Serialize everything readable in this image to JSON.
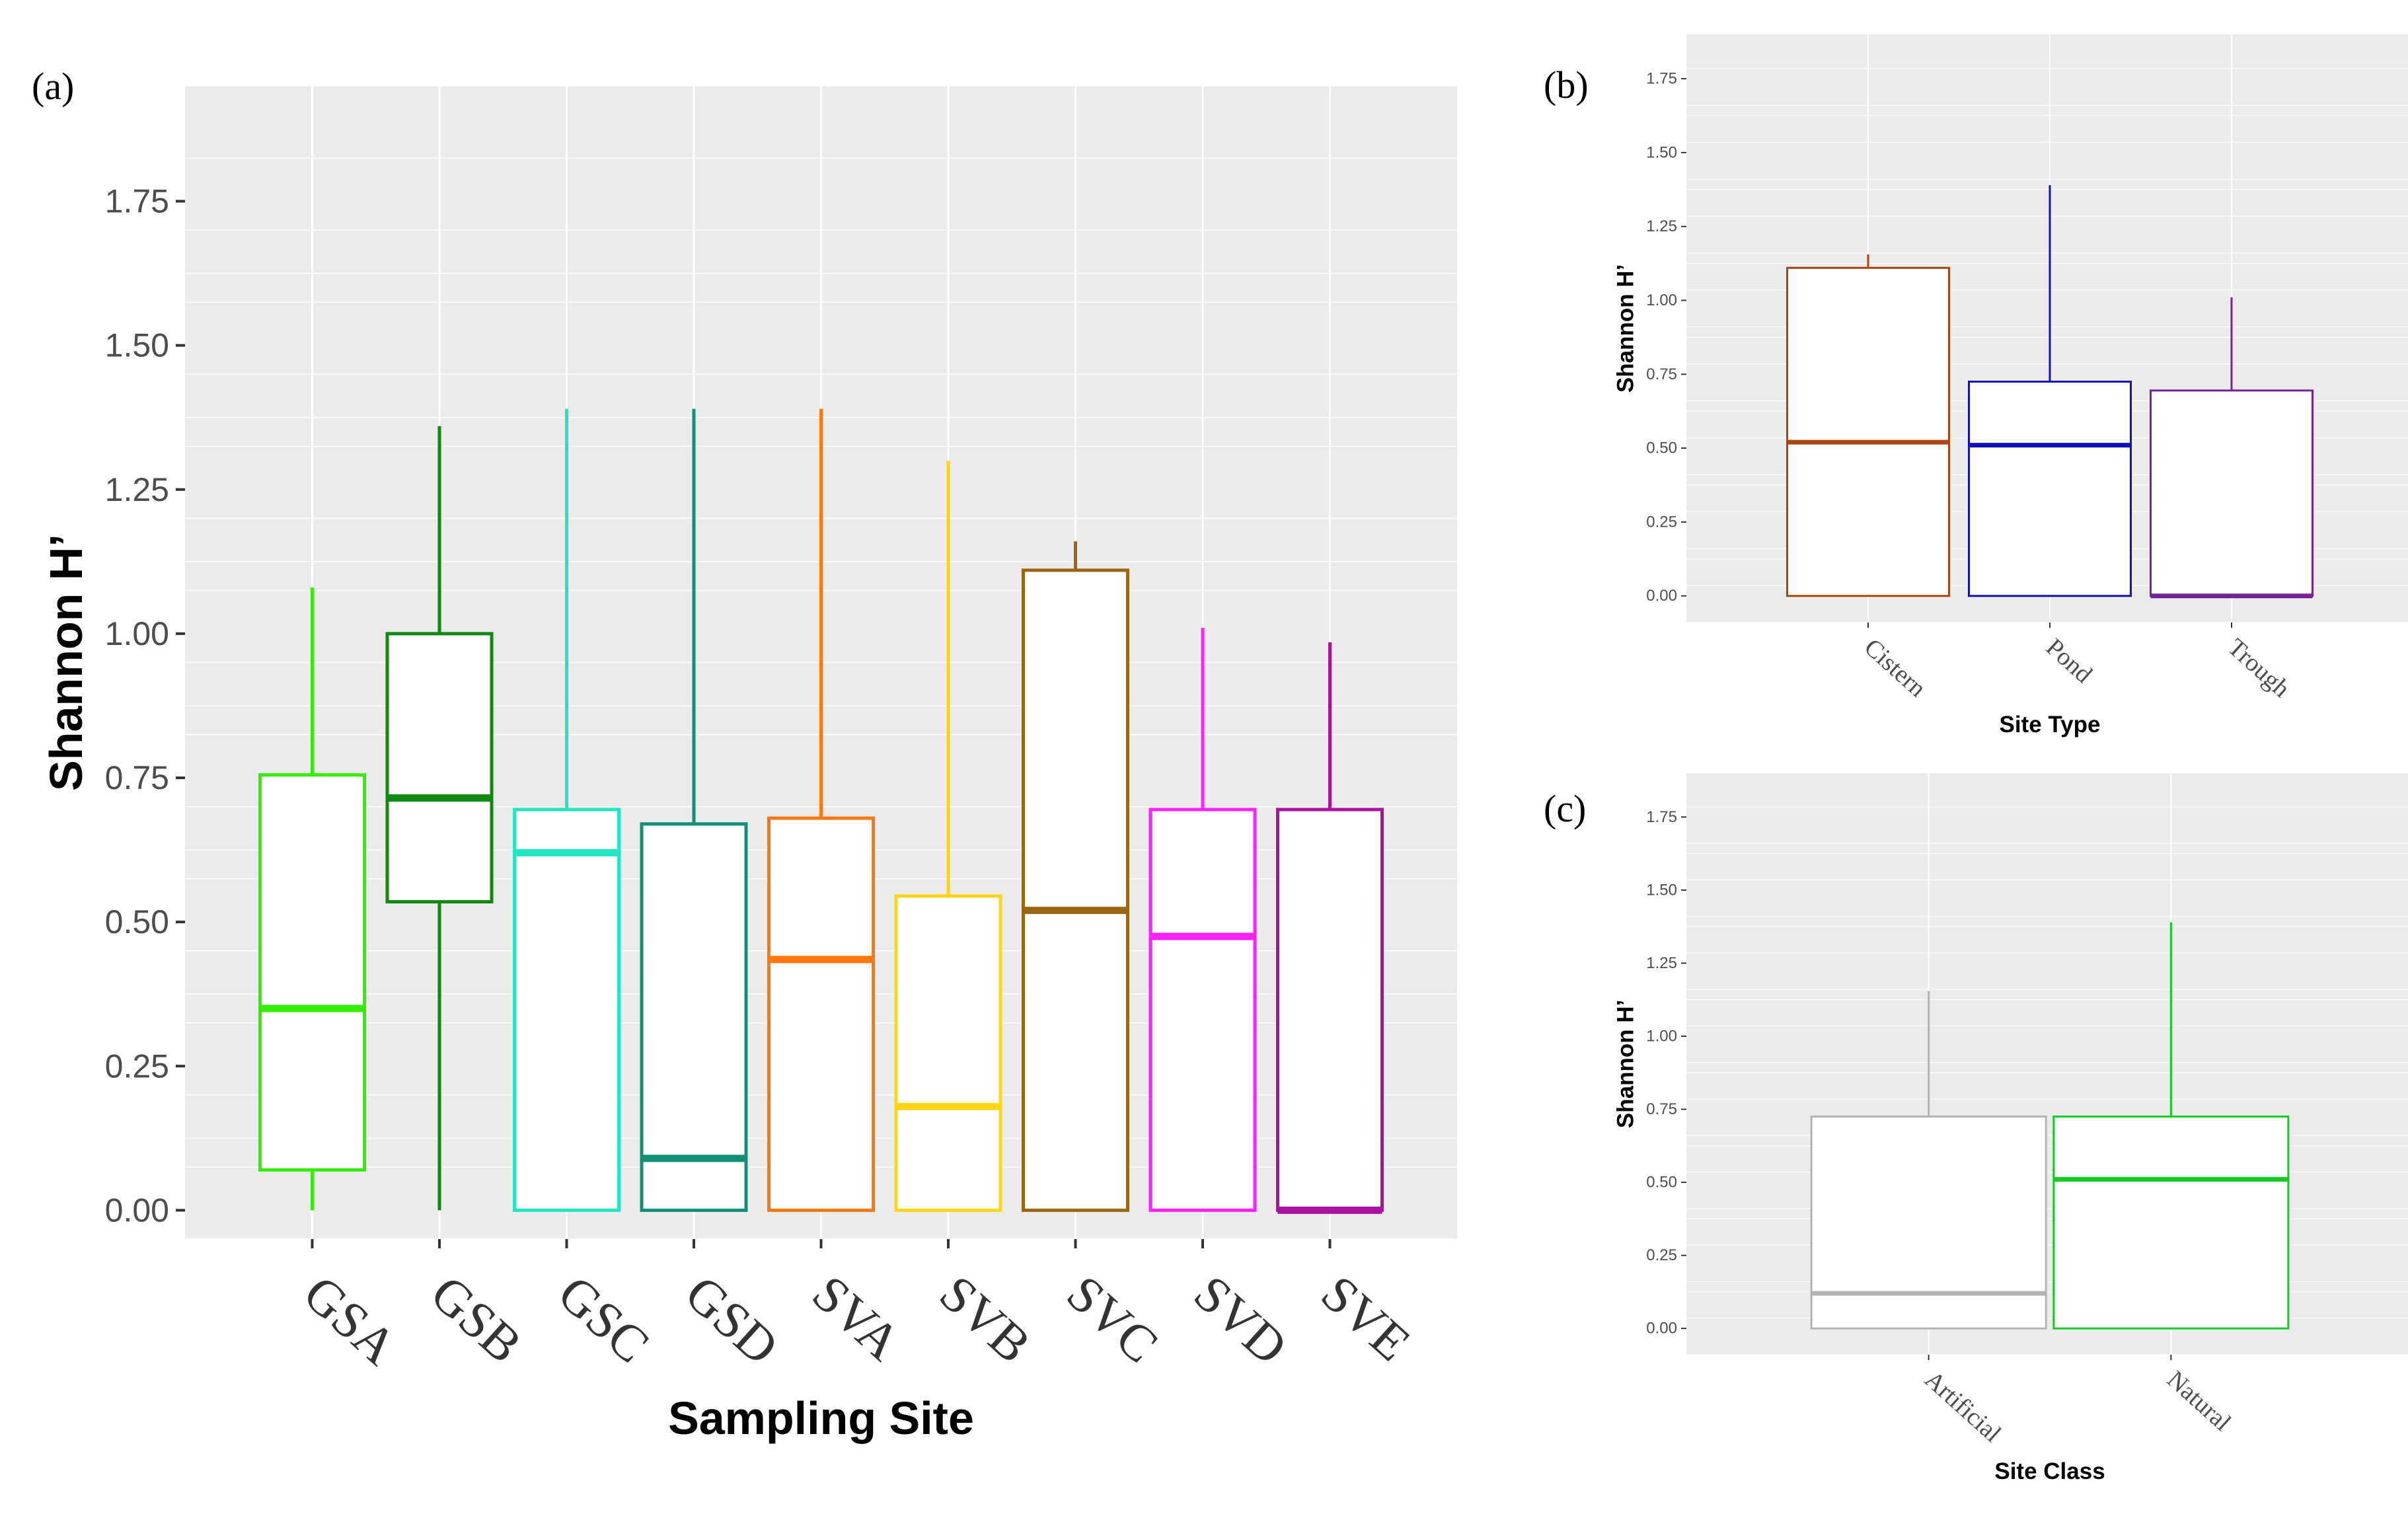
{
  "chart_data": [
    {
      "panel_label": "(a)",
      "type": "boxplot",
      "xlabel": "Sampling Site",
      "ylabel": "Shannon H’",
      "ylim": [
        -0.05,
        1.95
      ],
      "yticks": [
        0.0,
        0.25,
        0.5,
        0.75,
        1.0,
        1.25,
        1.5,
        1.75
      ],
      "ytick_labels": [
        "0.00",
        "0.25",
        "0.50",
        "0.75",
        "1.00",
        "1.25",
        "1.50",
        "1.75"
      ],
      "grid": true,
      "categories": [
        "GSA",
        "GSB",
        "GSC",
        "GSD",
        "SVA",
        "SVB",
        "SVC",
        "SVD",
        "SVE"
      ],
      "boxes": [
        {
          "name": "GSA",
          "color": "#33ee00",
          "min": 0.0,
          "q1": 0.07,
          "median": 0.35,
          "q3": 0.755,
          "max": 1.08
        },
        {
          "name": "GSB",
          "color": "#118811",
          "min": 0.0,
          "q1": 0.535,
          "median": 0.715,
          "q3": 1.0,
          "max": 1.36
        },
        {
          "name": "GSC",
          "color": "#22e5c2",
          "min": 0.0,
          "q1": 0.0,
          "median": 0.62,
          "q3": 0.695,
          "max": 1.39
        },
        {
          "name": "GSD",
          "color": "#119077",
          "min": 0.0,
          "q1": 0.0,
          "median": 0.09,
          "q3": 0.67,
          "max": 1.39
        },
        {
          "name": "SVA",
          "color": "#ff7711",
          "min": 0.0,
          "q1": 0.0,
          "median": 0.435,
          "q3": 0.68,
          "max": 1.39
        },
        {
          "name": "SVB",
          "color": "#ffd51a",
          "min": 0.0,
          "q1": 0.0,
          "median": 0.18,
          "q3": 0.545,
          "max": 1.3
        },
        {
          "name": "SVC",
          "color": "#9a6611",
          "min": 0.0,
          "q1": 0.0,
          "median": 0.52,
          "q3": 1.11,
          "max": 1.16
        },
        {
          "name": "SVD",
          "color": "#ff22ff",
          "min": 0.0,
          "q1": 0.0,
          "median": 0.475,
          "q3": 0.695,
          "max": 1.01
        },
        {
          "name": "SVE",
          "color": "#aa11a0",
          "min": 0.0,
          "q1": 0.0,
          "median": 0.0,
          "q3": 0.695,
          "max": 0.985
        }
      ]
    },
    {
      "panel_label": "(b)",
      "type": "boxplot",
      "xlabel": "Site Type",
      "ylabel": "Shannon H’",
      "ylim": [
        -0.09,
        1.9
      ],
      "yticks": [
        0.0,
        0.25,
        0.5,
        0.75,
        1.0,
        1.25,
        1.5,
        1.75
      ],
      "ytick_labels": [
        "0.00",
        "0.25",
        "0.50",
        "0.75",
        "1.00",
        "1.25",
        "1.50",
        "1.75"
      ],
      "grid": true,
      "categories": [
        "Cistern",
        "Pond",
        "Trough"
      ],
      "boxes": [
        {
          "name": "Cistern",
          "color": "#aa4411",
          "min": 0.0,
          "q1": 0.0,
          "median": 0.52,
          "q3": 1.11,
          "max": 1.155
        },
        {
          "name": "Pond",
          "color": "#1111bb",
          "min": 0.0,
          "q1": 0.0,
          "median": 0.51,
          "q3": 0.725,
          "max": 1.39
        },
        {
          "name": "Trough",
          "color": "#772299",
          "min": 0.0,
          "q1": 0.0,
          "median": 0.0,
          "q3": 0.695,
          "max": 1.01
        }
      ]
    },
    {
      "panel_label": "(c)",
      "type": "boxplot",
      "xlabel": "Site Class",
      "ylabel": "Shannon H’",
      "ylim": [
        -0.09,
        1.9
      ],
      "yticks": [
        0.0,
        0.25,
        0.5,
        0.75,
        1.0,
        1.25,
        1.5,
        1.75
      ],
      "ytick_labels": [
        "0.00",
        "0.25",
        "0.50",
        "0.75",
        "1.00",
        "1.25",
        "1.50",
        "1.75"
      ],
      "grid": true,
      "categories": [
        "Artificial",
        "Natural"
      ],
      "boxes": [
        {
          "name": "Artificial",
          "color": "#b3b3b3",
          "min": 0.0,
          "q1": 0.0,
          "median": 0.12,
          "q3": 0.725,
          "max": 1.155
        },
        {
          "name": "Natural",
          "color": "#11cc22",
          "min": 0.0,
          "q1": 0.0,
          "median": 0.51,
          "q3": 0.725,
          "max": 1.39
        }
      ]
    }
  ]
}
